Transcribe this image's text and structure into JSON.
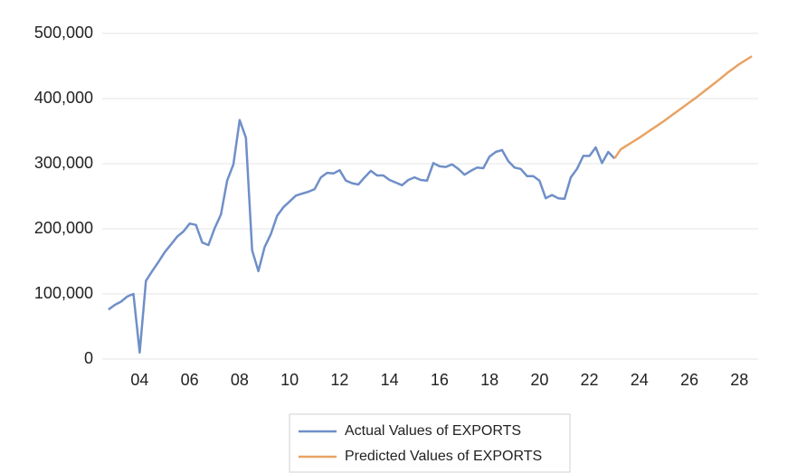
{
  "chart_data": {
    "type": "line",
    "x": [
      2.75,
      3,
      3.25,
      3.5,
      3.75,
      4,
      4.25,
      4.5,
      4.75,
      5,
      5.25,
      5.5,
      5.75,
      6,
      6.25,
      6.5,
      6.75,
      7,
      7.25,
      7.5,
      7.75,
      8,
      8.25,
      8.5,
      8.75,
      9,
      9.25,
      9.5,
      9.75,
      10,
      10.25,
      10.5,
      10.75,
      11,
      11.25,
      11.5,
      11.75,
      12,
      12.25,
      12.5,
      12.75,
      13,
      13.25,
      13.5,
      13.75,
      14,
      14.25,
      14.5,
      14.75,
      15,
      15.25,
      15.5,
      15.75,
      16,
      16.25,
      16.5,
      16.75,
      17,
      17.25,
      17.5,
      17.75,
      18,
      18.25,
      18.5,
      18.75,
      19,
      19.25,
      19.5,
      19.75,
      20,
      20.25,
      20.5,
      20.75,
      21,
      21.25,
      21.5,
      21.75,
      22,
      22.25,
      22.5,
      22.75,
      23,
      23.25,
      23.5,
      23.75,
      24,
      24.25,
      24.5,
      24.75,
      25,
      25.25,
      25.5,
      25.75,
      26,
      26.25,
      26.5,
      26.75,
      27,
      27.25,
      27.5,
      27.75,
      28,
      28.25,
      28.5
    ],
    "series": [
      {
        "name": "Actual Values of EXPORTS",
        "color": "#6f8fc8",
        "values": [
          76000,
          83000,
          88000,
          96000,
          100000,
          10000,
          120000,
          135000,
          149000,
          164000,
          176000,
          188000,
          196000,
          208000,
          206000,
          179000,
          175000,
          201000,
          222000,
          274000,
          299000,
          367000,
          340000,
          167000,
          135000,
          172000,
          192000,
          220000,
          233000,
          242000,
          251000,
          254000,
          257000,
          261000,
          279000,
          286000,
          285000,
          290000,
          274000,
          270000,
          268000,
          279000,
          289000,
          282000,
          282000,
          275000,
          271000,
          267000,
          275000,
          279000,
          275000,
          274000,
          301000,
          296000,
          295000,
          299000,
          292000,
          283000,
          289000,
          294000,
          293000,
          311000,
          318000,
          321000,
          304000,
          294000,
          292000,
          281000,
          281000,
          274000,
          247000,
          252000,
          247000,
          246000,
          279000,
          292000,
          312000,
          312000,
          325000,
          301000,
          318000,
          308000,
          null,
          null,
          null,
          null,
          null,
          null,
          null,
          null,
          null,
          null,
          null,
          null,
          null,
          null,
          null,
          null,
          null,
          null,
          null,
          null,
          null,
          null
        ]
      },
      {
        "name": "Predicted Values of EXPORTS",
        "color": "#e9a263",
        "values": [
          null,
          null,
          null,
          null,
          null,
          null,
          null,
          null,
          null,
          null,
          null,
          null,
          null,
          null,
          null,
          null,
          null,
          null,
          null,
          null,
          null,
          null,
          null,
          null,
          null,
          null,
          null,
          null,
          null,
          null,
          null,
          null,
          null,
          null,
          null,
          null,
          null,
          null,
          null,
          null,
          null,
          null,
          null,
          null,
          null,
          null,
          null,
          null,
          null,
          null,
          null,
          null,
          null,
          null,
          null,
          null,
          null,
          null,
          null,
          null,
          null,
          null,
          null,
          null,
          null,
          null,
          null,
          null,
          null,
          null,
          null,
          null,
          null,
          null,
          null,
          null,
          null,
          null,
          null,
          null,
          null,
          308000,
          322000,
          328000,
          334000,
          340000,
          346500,
          353000,
          359500,
          366000,
          373000,
          380000,
          387000,
          394000,
          401000,
          408500,
          416000,
          423500,
          431000,
          439000,
          446000,
          453000,
          459000,
          465000
        ]
      }
    ],
    "xlim": [
      2.5,
      28.75
    ],
    "xticks": [
      {
        "value": 4,
        "label": "04"
      },
      {
        "value": 6,
        "label": "06"
      },
      {
        "value": 8,
        "label": "08"
      },
      10,
      12,
      14,
      16,
      18,
      20,
      22,
      24,
      26,
      28
    ],
    "ylim": [
      0,
      500000
    ],
    "yticks": [
      0,
      {
        "value": 100000,
        "label": "100,000"
      },
      {
        "value": 200000,
        "label": "200,000"
      },
      {
        "value": 300000,
        "label": "300,000"
      },
      {
        "value": 400000,
        "label": "400,000"
      },
      {
        "value": 500000,
        "label": "500,000"
      }
    ],
    "grid": true,
    "legend": "bottom"
  }
}
